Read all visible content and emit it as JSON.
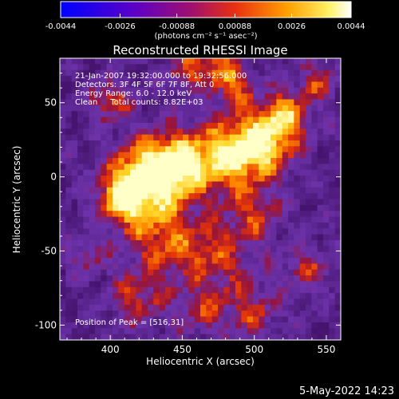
{
  "chart_data": {
    "type": "heatmap",
    "title": "Reconstructed RHESSI Image",
    "xlabel": "Heliocentric X (arcsec)",
    "ylabel": "Heliocentric Y (arcsec)",
    "xlim": [
      365,
      560
    ],
    "ylim": [
      -110,
      80
    ],
    "x_ticks": [
      400,
      450,
      500,
      550
    ],
    "y_ticks": [
      -100,
      -50,
      0,
      50
    ],
    "colorbar": {
      "tick_labels": [
        "-0.0044",
        "-0.0026",
        "-0.00088",
        "0.00088",
        "0.0026",
        "0.0044"
      ],
      "tick_values": [
        -0.0044,
        -0.0026,
        -0.00088,
        0.00088,
        0.0026,
        0.0044
      ],
      "range": [
        -0.0044,
        0.0044
      ],
      "units_label": "(photons cm⁻² s⁻¹ asec⁻²)"
    },
    "annotations": [
      "21-Jan-2007 19:32:00.000 to 19:32:56.000",
      "Detectors: 3F 4F 5F 6F 7F 8F, Att 0",
      "Energy Range: 6.0 - 12.0 keV",
      "Clean     Total counts: 8.82E+03"
    ],
    "peak_label": "Position of Peak = [516,31]",
    "peak_position": [
      516,
      31
    ],
    "grid": false
  },
  "footer": {
    "date": "5-May-2022 14:23"
  }
}
